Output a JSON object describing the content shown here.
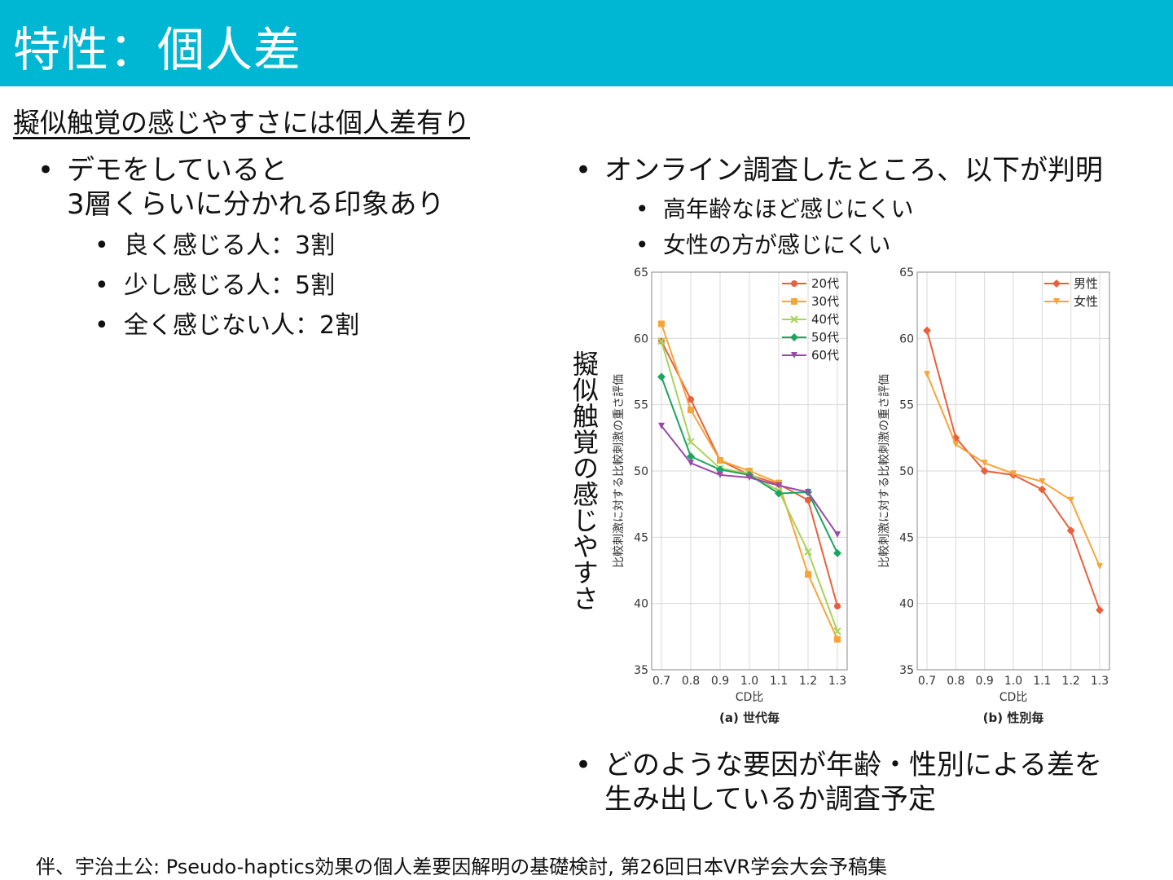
{
  "header": {
    "title": "特性：個人差"
  },
  "subtitle": "擬似触覚の感じやすさには個人差有り",
  "left": {
    "bullet": [
      "デモをしていると",
      "3層くらいに分かれる印象あり"
    ],
    "items": [
      "良く感じる人：3割",
      "少し感じる人：5割",
      "全く感じない人：2割"
    ]
  },
  "right": {
    "bullet": "オンライン調査したところ、以下が判明",
    "items": [
      "高年齢なほど感じにくい",
      "女性の方が感じにくい"
    ],
    "bullet2": [
      "どのような要因が年齢・性別による差を",
      "生み出しているか調査予定"
    ]
  },
  "figure_ylabel": "擬似触覚の感じやすさ",
  "footer": "伴、宇治土公: Pseudo-haptics効果の個人差要因解明の基礎検討, 第26回日本VR学会大会予稿集",
  "chart_data": [
    {
      "type": "line",
      "title": "(a) 世代毎",
      "xlabel": "CD比",
      "ylabel": "比較刺激に対する比較刺激の重さ評価",
      "x": [
        0.7,
        0.8,
        0.9,
        1.0,
        1.1,
        1.2,
        1.3
      ],
      "ylim": [
        35,
        65
      ],
      "yticks": [
        35,
        40,
        45,
        50,
        55,
        60,
        65
      ],
      "grid": true,
      "legend_position": "top-right",
      "series": [
        {
          "name": "20代",
          "color": "#e8603c",
          "marker": "circle",
          "values": [
            59.8,
            55.4,
            50.8,
            49.7,
            49.0,
            47.8,
            39.8
          ]
        },
        {
          "name": "30代",
          "color": "#f7a43a",
          "marker": "square",
          "values": [
            61.1,
            54.6,
            50.8,
            50.0,
            49.1,
            42.2,
            37.3
          ]
        },
        {
          "name": "40代",
          "color": "#a8d35a",
          "marker": "x",
          "values": [
            59.8,
            52.2,
            50.2,
            49.8,
            48.5,
            43.9,
            37.9
          ]
        },
        {
          "name": "50代",
          "color": "#1aa660",
          "marker": "diamond",
          "values": [
            57.1,
            51.1,
            50.1,
            49.7,
            48.3,
            48.4,
            43.8
          ]
        },
        {
          "name": "60代",
          "color": "#9a4aa8",
          "marker": "triangle-down",
          "values": [
            53.4,
            50.6,
            49.7,
            49.5,
            48.9,
            48.4,
            45.2
          ]
        }
      ]
    },
    {
      "type": "line",
      "title": "(b) 性別毎",
      "xlabel": "CD比",
      "ylabel": "比較刺激に対する比較刺激の重さ評価",
      "x": [
        0.7,
        0.8,
        0.9,
        1.0,
        1.1,
        1.2,
        1.3
      ],
      "ylim": [
        35,
        65
      ],
      "yticks": [
        35,
        40,
        45,
        50,
        55,
        60,
        65
      ],
      "grid": true,
      "legend_position": "top-right",
      "series": [
        {
          "name": "男性",
          "color": "#e8603c",
          "marker": "diamond",
          "values": [
            60.6,
            52.5,
            50.0,
            49.7,
            48.6,
            45.5,
            39.5
          ]
        },
        {
          "name": "女性",
          "color": "#f7a43a",
          "marker": "triangle-down",
          "values": [
            57.3,
            52.0,
            50.6,
            49.8,
            49.2,
            47.8,
            42.8
          ]
        }
      ]
    }
  ]
}
